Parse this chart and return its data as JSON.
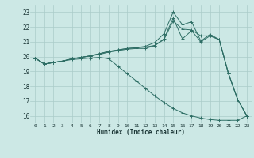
{
  "xlabel": "Humidex (Indice chaleur)",
  "xlim": [
    -0.5,
    23.5
  ],
  "ylim": [
    15.5,
    23.5
  ],
  "yticks": [
    16,
    17,
    18,
    19,
    20,
    21,
    22,
    23
  ],
  "xticks": [
    0,
    1,
    2,
    3,
    4,
    5,
    6,
    7,
    8,
    9,
    10,
    11,
    12,
    13,
    14,
    15,
    16,
    17,
    18,
    19,
    20,
    21,
    22,
    23
  ],
  "bg_color": "#cce8e5",
  "grid_color": "#aaccc9",
  "line_color": "#2e6e65",
  "lines": [
    [
      19.9,
      19.5,
      19.6,
      19.7,
      19.85,
      19.95,
      20.05,
      20.2,
      20.35,
      20.45,
      20.55,
      20.6,
      20.7,
      20.95,
      21.55,
      23.0,
      22.15,
      22.35,
      21.05,
      21.5,
      21.15,
      18.85,
      17.1,
      16.0
    ],
    [
      19.9,
      19.5,
      19.6,
      19.7,
      19.85,
      19.95,
      20.05,
      20.2,
      20.35,
      20.45,
      20.55,
      20.6,
      20.65,
      20.75,
      21.2,
      22.6,
      21.2,
      21.75,
      21.0,
      21.4,
      21.15,
      18.85,
      17.1,
      16.0
    ],
    [
      19.9,
      19.5,
      19.6,
      19.7,
      19.85,
      19.95,
      20.05,
      20.15,
      20.3,
      20.4,
      20.5,
      20.55,
      20.55,
      20.75,
      21.15,
      22.4,
      21.85,
      21.8,
      21.4,
      21.4,
      21.15,
      18.85,
      17.1,
      16.0
    ],
    [
      19.9,
      19.5,
      19.6,
      19.7,
      19.8,
      19.85,
      19.9,
      19.95,
      19.85,
      19.35,
      18.85,
      18.35,
      17.85,
      17.35,
      16.9,
      16.5,
      16.2,
      16.0,
      15.85,
      15.75,
      15.7,
      15.7,
      15.7,
      16.0
    ]
  ]
}
